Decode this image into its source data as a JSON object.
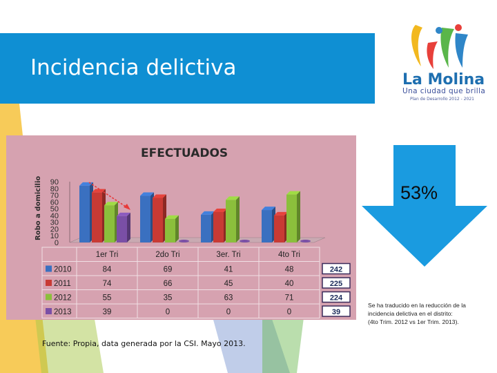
{
  "slide": {
    "title": "Incidencia delictiva",
    "source": "Fuente: Propia, data generada por la CSI. Mayo 2013.",
    "percent": "53%",
    "note_lines": [
      "Se ha traducido en la reducción de la",
      "incidencia delictiva en el distrito:",
      "(4to Trim. 2012 vs 1er Trim. 2013)."
    ]
  },
  "logo": {
    "name": "La Molina",
    "tagline": "Una ciudad que brilla",
    "subline": "Plan de Desarrollo 2012 - 2021"
  },
  "colors": {
    "header": "#0f8fd3",
    "arrow": "#1a9be0",
    "chart_bg": "#d6a2b0"
  },
  "chart_data": {
    "type": "bar",
    "title": "EFECTUADOS",
    "ylabel": "Robo a domicilio",
    "xlabel": "",
    "categories": [
      "1er Tri",
      "2do Tri",
      "3er. Tri",
      "4to Tri"
    ],
    "ylim": [
      0,
      90
    ],
    "yticks": [
      0,
      10,
      20,
      30,
      40,
      50,
      60,
      70,
      80,
      90
    ],
    "grid": false,
    "series": [
      {
        "name": "2010",
        "color": "#3a70c0",
        "values": [
          84,
          69,
          41,
          48
        ],
        "total": "242"
      },
      {
        "name": "2011",
        "color": "#c83a34",
        "values": [
          74,
          66,
          45,
          40
        ],
        "total": "225"
      },
      {
        "name": "2012",
        "color": "#8bbf3c",
        "values": [
          55,
          35,
          63,
          71
        ],
        "total": "224"
      },
      {
        "name": "2013",
        "color": "#7a4fa6",
        "values": [
          39,
          0,
          0,
          0
        ],
        "total": "39"
      }
    ]
  }
}
